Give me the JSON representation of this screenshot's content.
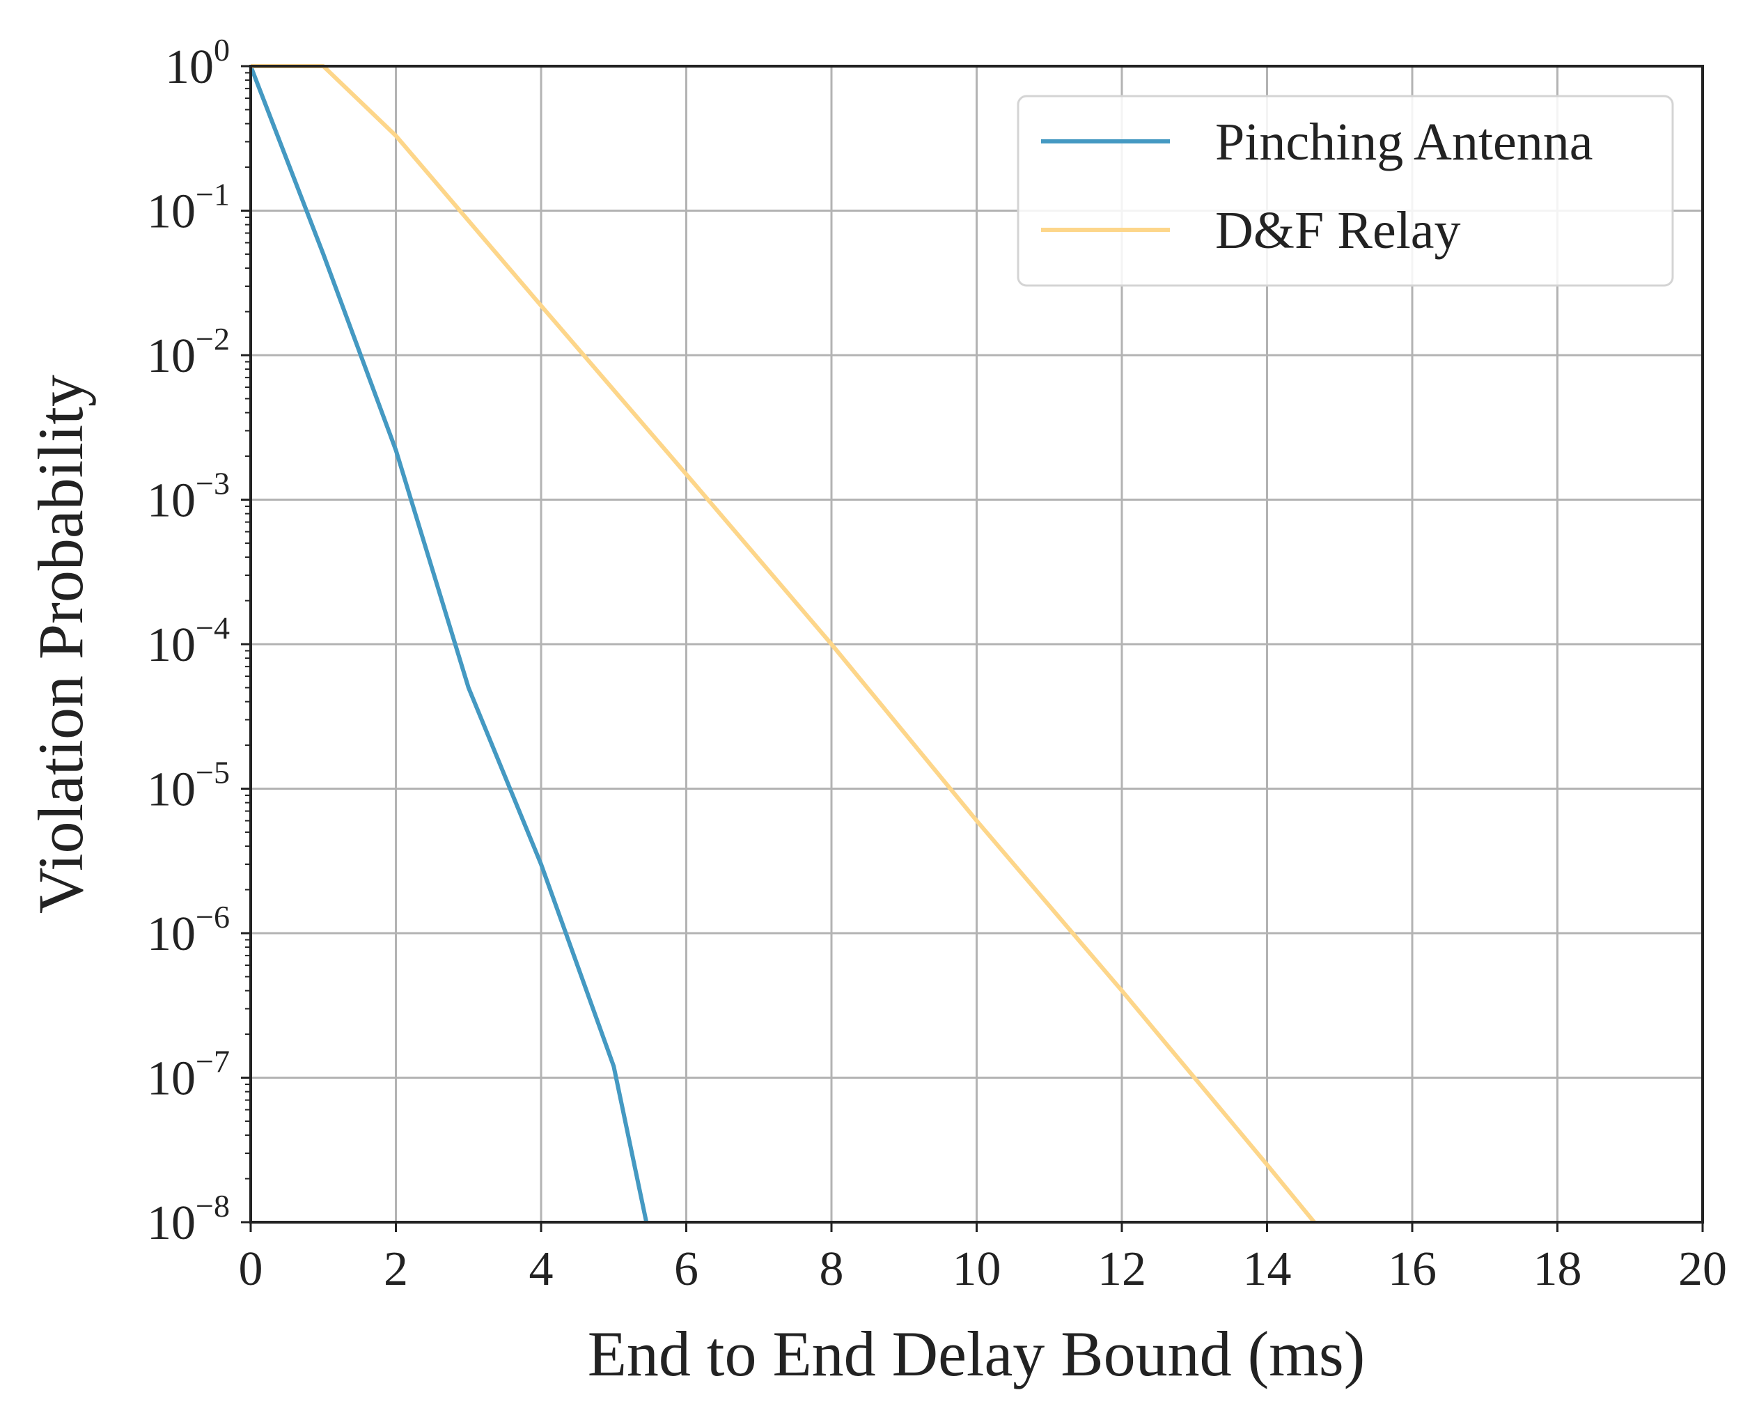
{
  "chart_data": {
    "type": "line",
    "title": "",
    "xlabel": "End to End Delay Bound (ms)",
    "ylabel": "Violation Probability",
    "xlim": [
      0,
      20
    ],
    "ylim": [
      1e-08,
      1
    ],
    "yscale": "log",
    "grid": true,
    "legend_position": "top-right",
    "x_ticks": [
      0,
      2,
      4,
      6,
      8,
      10,
      12,
      14,
      16,
      18,
      20
    ],
    "x_tick_labels": [
      "0",
      "2",
      "4",
      "6",
      "8",
      "10",
      "12",
      "14",
      "16",
      "18",
      "20"
    ],
    "y_ticks": [
      {
        "value": 1,
        "base": "10",
        "exp": "0"
      },
      {
        "value": 0.1,
        "base": "10",
        "exp": "−1"
      },
      {
        "value": 0.01,
        "base": "10",
        "exp": "−2"
      },
      {
        "value": 0.001,
        "base": "10",
        "exp": "−3"
      },
      {
        "value": 0.0001,
        "base": "10",
        "exp": "−4"
      },
      {
        "value": 1e-05,
        "base": "10",
        "exp": "−5"
      },
      {
        "value": 1e-06,
        "base": "10",
        "exp": "−6"
      },
      {
        "value": 1e-07,
        "base": "10",
        "exp": "−7"
      },
      {
        "value": 1e-08,
        "base": "10",
        "exp": "−8"
      }
    ],
    "series": [
      {
        "name": "Pinching Antenna",
        "color": "#4499c2",
        "x": [
          0.0,
          1.0,
          2.0,
          3.0,
          4.0,
          5.0,
          5.45
        ],
        "y": [
          1.0,
          0.05,
          0.0022,
          5e-05,
          3e-06,
          1.2e-07,
          1e-08
        ]
      },
      {
        "name": "D&F Relay",
        "color": "#fdd68a",
        "x": [
          0.0,
          1.0,
          2.0,
          4.0,
          6.0,
          8.0,
          10.0,
          12.0,
          14.0,
          14.65
        ],
        "y": [
          1.0,
          1.0,
          0.33,
          0.022,
          0.0015,
          0.0001,
          6e-06,
          4e-07,
          2.5e-08,
          1e-08
        ]
      }
    ]
  }
}
